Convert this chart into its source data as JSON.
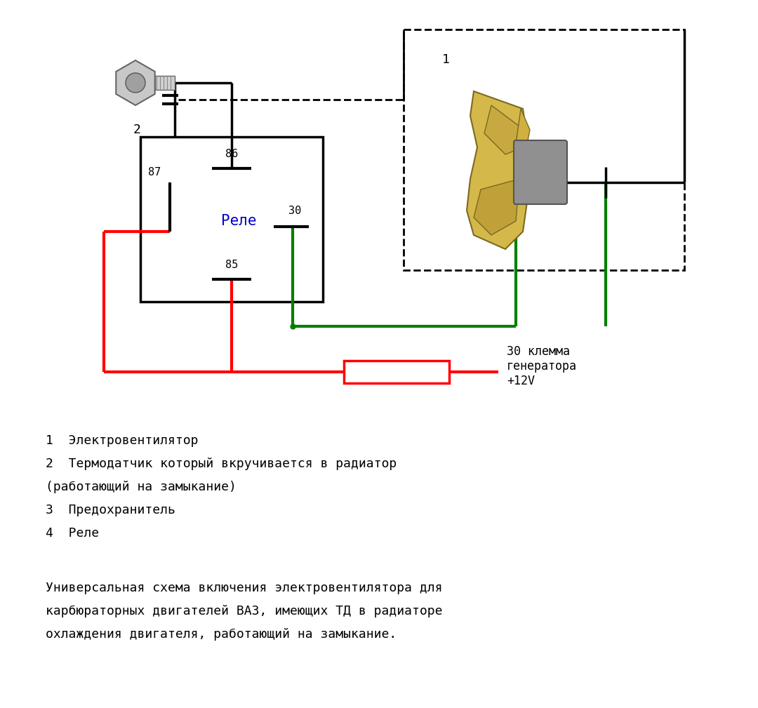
{
  "bg_color": "#ffffff",
  "relay_label_text": "Реле",
  "relay_label_color": "#0000cc",
  "gen_label": "30 клемма\nгенератора\n+12V",
  "label_items": [
    "1  Электровентилятор",
    "2  Термодатчик который вкручивается в радиатор",
    "(работающий на замыкание)",
    "3  Предохранитель",
    "4  Реле"
  ],
  "bottom_text": [
    "Универсальная схема включения электровентилятора для",
    "карбюраторных двигателей ВАЗ, имеющих ТД в радиаторе",
    "охлаждения двигателя, работающий на замыкание."
  ]
}
